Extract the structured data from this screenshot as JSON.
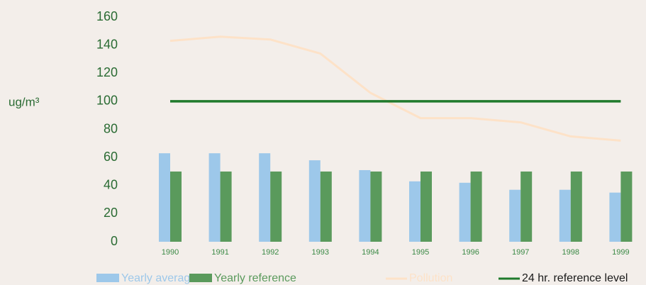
{
  "chart_data": {
    "type": "bar",
    "y_label": "ug/m³",
    "categories": [
      "1990",
      "1991",
      "1992",
      "1993",
      "1994",
      "1995",
      "1996",
      "1997",
      "1998",
      "1999"
    ],
    "series": [
      {
        "name": "Yearly average",
        "type": "bar",
        "color": "#9dc8ea",
        "values": [
          63,
          63,
          63,
          58,
          51,
          43,
          42,
          37,
          37,
          35
        ]
      },
      {
        "name": "Yearly reference",
        "type": "bar",
        "color": "#5a9a5c",
        "values": [
          50,
          50,
          50,
          50,
          50,
          50,
          50,
          50,
          50,
          50
        ]
      },
      {
        "name": "Pollution",
        "type": "line",
        "color": "#fde2c8",
        "values": [
          143,
          146,
          144,
          134,
          106,
          88,
          88,
          85,
          75,
          72
        ]
      },
      {
        "name": "24 hr. reference level",
        "type": "line",
        "color": "#1f7a2c",
        "values": [
          100,
          100,
          100,
          100,
          100,
          100,
          100,
          100,
          100,
          100
        ]
      }
    ],
    "ylim": [
      0,
      160
    ],
    "yticks": [
      0,
      20,
      40,
      60,
      80,
      100,
      120,
      140,
      160
    ],
    "grid": false
  }
}
